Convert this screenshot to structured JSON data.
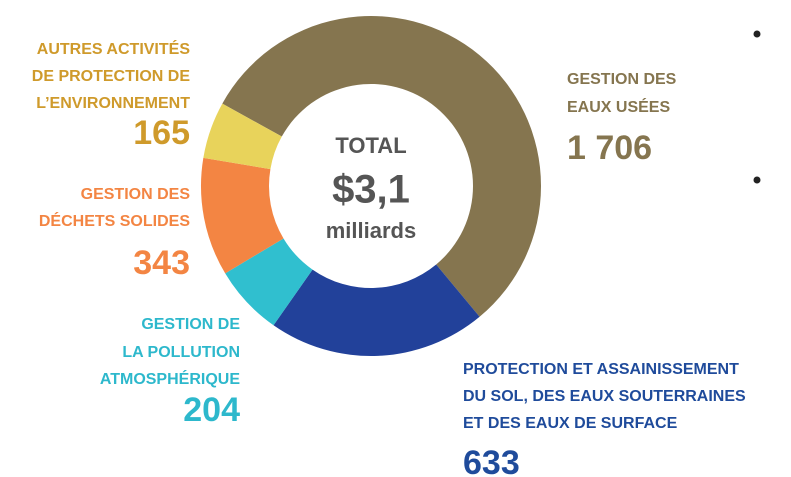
{
  "chart_data": {
    "type": "donut",
    "center_text": [
      "TOTAL",
      "$3,1",
      "milliards"
    ],
    "categories": [
      [
        "GESTION DES",
        "EAUX USÉES"
      ],
      [
        "PROTECTION ET ASSAINISSEMENT",
        "DU SOL, DES EAUX SOUTERRAINES",
        "ET DES EAUX DE SURFACE"
      ],
      [
        "GESTION DE",
        "LA POLLUTION",
        "ATMOSPHÉRIQUE"
      ],
      [
        "GESTION DES",
        "DÉCHETS SOLIDES"
      ],
      [
        "AUTRES ACTIVITÉS",
        "DE PROTECTION DE",
        "L’ENVIRONNEMENT"
      ]
    ],
    "values": [
      1706,
      633,
      204,
      343,
      165
    ],
    "value_labels": [
      "1 706",
      "633",
      "204",
      "343",
      "165"
    ],
    "colors": [
      "#85754f",
      "#22419a",
      "#30bfcf",
      "#f38543",
      "#e8d35b"
    ]
  }
}
